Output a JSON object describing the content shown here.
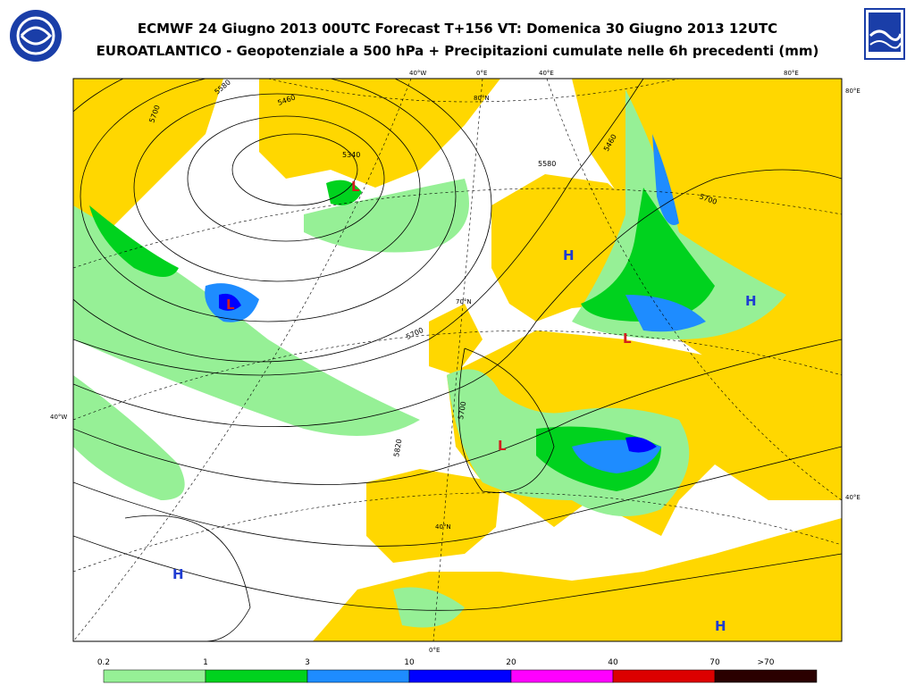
{
  "header": {
    "title_line1": "ECMWF 24 Giugno 2013 00UTC Forecast T+156 VT: Domenica 30 Giugno 2013 12UTC",
    "title_line2": "EUROATLANTICO - Geopotenziale a 500 hPa + Precipitazioni cumulate nelle 6h precedenti (mm)"
  },
  "map": {
    "coord_labels": [
      "40°W",
      "0°E",
      "40°E",
      "80°E",
      "80°E",
      "40°W",
      "40°E",
      "80°N",
      "70°N",
      "40°N",
      "0°E"
    ],
    "contour_labels": [
      "5700",
      "5580",
      "5460",
      "5340",
      "5580",
      "5460",
      "5700",
      "5700",
      "5700",
      "5820"
    ],
    "centers": [
      "H",
      "H",
      "H",
      "H",
      "L",
      "L",
      "L",
      "L"
    ]
  },
  "legend": {
    "labels": [
      "0.2",
      "1",
      "3",
      "10",
      "20",
      "40",
      "70",
      ">70"
    ],
    "colors": [
      "#96f096",
      "#00d21e",
      "#1e8cff",
      "#0000ff",
      "#ff00ff",
      "#dc0000",
      "#2a0000"
    ]
  }
}
